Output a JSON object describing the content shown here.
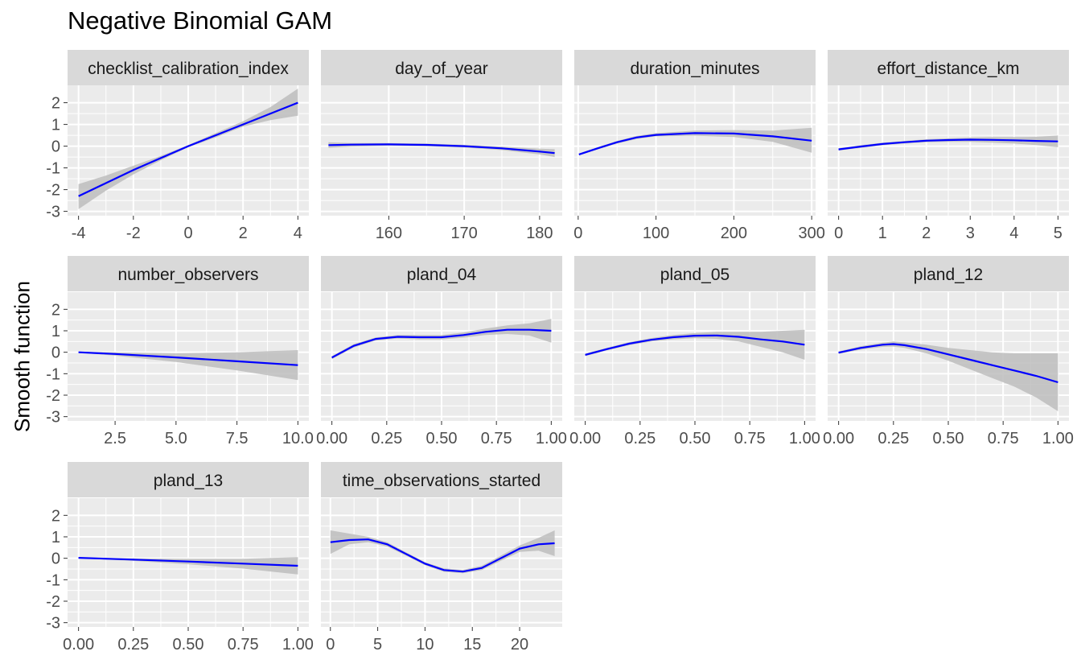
{
  "chart_data": {
    "type": "line",
    "title": "Negative Binomial GAM",
    "ylabel": "Smooth function",
    "y_ticks": [
      "2",
      "1",
      "0",
      "-1",
      "-2",
      "-3"
    ],
    "ylim": [
      -3.2,
      2.8
    ],
    "grid": true,
    "line_color": "#0000ff",
    "band_color": "#bdbdbd",
    "panel_bg": "#ebebeb",
    "strip_bg": "#d9d9d9",
    "panels": [
      {
        "title": "checklist_calibration_index",
        "xlim": [
          -4.4,
          4.4
        ],
        "x_ticks": [
          {
            "v": -4,
            "label": "-4"
          },
          {
            "v": -2,
            "label": "-2"
          },
          {
            "v": 0,
            "label": "0"
          },
          {
            "v": 2,
            "label": "2"
          },
          {
            "v": 4,
            "label": "4"
          }
        ],
        "series": [
          {
            "x": [
              -4,
              -3,
              -2,
              -1,
              0,
              1,
              2,
              3,
              4
            ],
            "y": [
              -2.3,
              -1.7,
              -1.1,
              -0.55,
              0,
              0.5,
              1.0,
              1.5,
              2.0
            ],
            "lower": [
              -2.9,
              -2.05,
              -1.3,
              -0.65,
              -0.05,
              0.4,
              0.9,
              1.2,
              1.4
            ],
            "upper": [
              -1.75,
              -1.35,
              -0.9,
              -0.45,
              0.05,
              0.6,
              1.15,
              1.8,
              2.65
            ]
          }
        ]
      },
      {
        "title": "day_of_year",
        "xlim": [
          151,
          183
        ],
        "x_ticks": [
          {
            "v": 160,
            "label": "160"
          },
          {
            "v": 170,
            "label": "170"
          },
          {
            "v": 180,
            "label": "180"
          }
        ],
        "series": [
          {
            "x": [
              152,
              155,
              160,
              165,
              170,
              175,
              180,
              182
            ],
            "y": [
              0.05,
              0.07,
              0.08,
              0.06,
              0.0,
              -0.1,
              -0.25,
              -0.32
            ],
            "lower": [
              -0.08,
              -0.02,
              0.02,
              0.0,
              -0.06,
              -0.18,
              -0.38,
              -0.5
            ],
            "upper": [
              0.18,
              0.14,
              0.14,
              0.12,
              0.06,
              -0.02,
              -0.12,
              -0.14
            ]
          }
        ]
      },
      {
        "title": "duration_minutes",
        "xlim": [
          -5,
          305
        ],
        "x_ticks": [
          {
            "v": 0,
            "label": "0"
          },
          {
            "v": 100,
            "label": "100"
          },
          {
            "v": 200,
            "label": "200"
          },
          {
            "v": 300,
            "label": "300"
          }
        ],
        "series": [
          {
            "x": [
              1,
              25,
              50,
              75,
              100,
              150,
              200,
              250,
              300
            ],
            "y": [
              -0.38,
              -0.1,
              0.18,
              0.4,
              0.52,
              0.6,
              0.58,
              0.45,
              0.25
            ],
            "lower": [
              -0.42,
              -0.15,
              0.12,
              0.33,
              0.45,
              0.48,
              0.42,
              0.2,
              -0.3
            ],
            "upper": [
              -0.34,
              -0.05,
              0.24,
              0.47,
              0.6,
              0.72,
              0.74,
              0.72,
              0.85
            ]
          }
        ]
      },
      {
        "title": "effort_distance_km",
        "xlim": [
          -0.25,
          5.25
        ],
        "x_ticks": [
          {
            "v": 0,
            "label": "0"
          },
          {
            "v": 1,
            "label": "1"
          },
          {
            "v": 2,
            "label": "2"
          },
          {
            "v": 3,
            "label": "3"
          },
          {
            "v": 4,
            "label": "4"
          },
          {
            "v": 5,
            "label": "5"
          }
        ],
        "series": [
          {
            "x": [
              0,
              0.5,
              1,
              1.5,
              2,
              2.5,
              3,
              3.5,
              4,
              4.5,
              5
            ],
            "y": [
              -0.15,
              -0.02,
              0.1,
              0.18,
              0.25,
              0.28,
              0.3,
              0.29,
              0.27,
              0.24,
              0.22
            ],
            "lower": [
              -0.2,
              -0.08,
              0.04,
              0.12,
              0.18,
              0.2,
              0.2,
              0.16,
              0.12,
              0.05,
              -0.05
            ],
            "upper": [
              -0.1,
              0.04,
              0.16,
              0.24,
              0.32,
              0.36,
              0.4,
              0.42,
              0.42,
              0.43,
              0.49
            ]
          }
        ]
      },
      {
        "title": "number_observers",
        "xlim": [
          0.55,
          10.45
        ],
        "x_ticks": [
          {
            "v": 2.5,
            "label": "2.5"
          },
          {
            "v": 5.0,
            "label": "5.0"
          },
          {
            "v": 7.5,
            "label": "7.5"
          },
          {
            "v": 10.0,
            "label": "10.0"
          }
        ],
        "series": [
          {
            "x": [
              1,
              2.5,
              5,
              7.5,
              10
            ],
            "y": [
              0.0,
              -0.08,
              -0.24,
              -0.42,
              -0.6
            ],
            "lower": [
              -0.02,
              -0.16,
              -0.45,
              -0.85,
              -1.3
            ],
            "upper": [
              0.02,
              0.0,
              -0.05,
              0.0,
              0.1
            ]
          }
        ]
      },
      {
        "title": "pland_04",
        "xlim": [
          -0.05,
          1.05
        ],
        "x_ticks": [
          {
            "v": 0,
            "label": "0.00"
          },
          {
            "v": 0.25,
            "label": "0.25"
          },
          {
            "v": 0.5,
            "label": "0.50"
          },
          {
            "v": 0.75,
            "label": "0.75"
          },
          {
            "v": 1.0,
            "label": "1.00"
          }
        ],
        "series": [
          {
            "x": [
              0,
              0.1,
              0.2,
              0.3,
              0.4,
              0.5,
              0.6,
              0.7,
              0.8,
              0.9,
              1.0
            ],
            "y": [
              -0.25,
              0.3,
              0.62,
              0.72,
              0.7,
              0.7,
              0.8,
              0.95,
              1.05,
              1.05,
              1.0
            ],
            "lower": [
              -0.32,
              0.22,
              0.55,
              0.64,
              0.6,
              0.6,
              0.68,
              0.8,
              0.85,
              0.78,
              0.45
            ],
            "upper": [
              -0.18,
              0.38,
              0.69,
              0.8,
              0.8,
              0.8,
              0.92,
              1.1,
              1.25,
              1.35,
              1.55
            ]
          }
        ]
      },
      {
        "title": "pland_05",
        "xlim": [
          -0.05,
          1.05
        ],
        "x_ticks": [
          {
            "v": 0,
            "label": "0.00"
          },
          {
            "v": 0.25,
            "label": "0.25"
          },
          {
            "v": 0.5,
            "label": "0.50"
          },
          {
            "v": 0.75,
            "label": "0.75"
          },
          {
            "v": 1.0,
            "label": "1.00"
          }
        ],
        "series": [
          {
            "x": [
              0,
              0.1,
              0.2,
              0.3,
              0.4,
              0.5,
              0.6,
              0.7,
              0.8,
              0.9,
              1.0
            ],
            "y": [
              -0.12,
              0.15,
              0.4,
              0.58,
              0.7,
              0.77,
              0.78,
              0.72,
              0.6,
              0.5,
              0.35
            ],
            "lower": [
              -0.18,
              0.09,
              0.33,
              0.5,
              0.6,
              0.65,
              0.62,
              0.5,
              0.25,
              0.0,
              -0.35
            ],
            "upper": [
              -0.06,
              0.21,
              0.47,
              0.66,
              0.8,
              0.9,
              0.95,
              0.95,
              0.95,
              1.0,
              1.05
            ]
          }
        ]
      },
      {
        "title": "pland_12",
        "xlim": [
          -0.05,
          1.05
        ],
        "x_ticks": [
          {
            "v": 0,
            "label": "0.00"
          },
          {
            "v": 0.25,
            "label": "0.25"
          },
          {
            "v": 0.5,
            "label": "0.50"
          },
          {
            "v": 0.75,
            "label": "0.75"
          },
          {
            "v": 1.0,
            "label": "1.00"
          }
        ],
        "series": [
          {
            "x": [
              0,
              0.1,
              0.2,
              0.25,
              0.3,
              0.4,
              0.5,
              0.6,
              0.7,
              0.8,
              0.9,
              1.0
            ],
            "y": [
              -0.02,
              0.2,
              0.35,
              0.38,
              0.33,
              0.15,
              -0.1,
              -0.35,
              -0.6,
              -0.85,
              -1.1,
              -1.4
            ],
            "lower": [
              -0.08,
              0.12,
              0.25,
              0.26,
              0.2,
              -0.05,
              -0.4,
              -0.8,
              -1.2,
              -1.6,
              -2.1,
              -2.75
            ],
            "upper": [
              0.04,
              0.28,
              0.45,
              0.5,
              0.46,
              0.35,
              0.2,
              0.1,
              0.0,
              -0.05,
              -0.05,
              -0.05
            ]
          }
        ]
      },
      {
        "title": "pland_13",
        "xlim": [
          -0.05,
          1.05
        ],
        "x_ticks": [
          {
            "v": 0,
            "label": "0.00"
          },
          {
            "v": 0.25,
            "label": "0.25"
          },
          {
            "v": 0.5,
            "label": "0.50"
          },
          {
            "v": 0.75,
            "label": "0.75"
          },
          {
            "v": 1.0,
            "label": "1.00"
          }
        ],
        "series": [
          {
            "x": [
              0,
              0.25,
              0.5,
              0.75,
              1.0
            ],
            "y": [
              0.02,
              -0.06,
              -0.15,
              -0.25,
              -0.35
            ],
            "lower": [
              0.0,
              -0.12,
              -0.28,
              -0.48,
              -0.75
            ],
            "upper": [
              0.04,
              0.0,
              -0.02,
              -0.02,
              0.05
            ]
          }
        ]
      },
      {
        "title": "time_observations_started",
        "xlim": [
          -1,
          24.5
        ],
        "x_ticks": [
          {
            "v": 0,
            "label": "0"
          },
          {
            "v": 5,
            "label": "5"
          },
          {
            "v": 10,
            "label": "10"
          },
          {
            "v": 15,
            "label": "15"
          },
          {
            "v": 20,
            "label": "20"
          }
        ],
        "series": [
          {
            "x": [
              0,
              2,
              4,
              6,
              8,
              10,
              12,
              14,
              16,
              18,
              20,
              22,
              23.7
            ],
            "y": [
              0.75,
              0.85,
              0.88,
              0.65,
              0.2,
              -0.25,
              -0.55,
              -0.62,
              -0.45,
              0.0,
              0.45,
              0.65,
              0.7
            ],
            "lower": [
              0.2,
              0.65,
              0.75,
              0.55,
              0.12,
              -0.32,
              -0.63,
              -0.7,
              -0.55,
              -0.12,
              0.3,
              0.35,
              0.1
            ],
            "upper": [
              1.3,
              1.15,
              1.0,
              0.75,
              0.28,
              -0.18,
              -0.47,
              -0.54,
              -0.35,
              0.12,
              0.6,
              0.95,
              1.3
            ]
          }
        ]
      }
    ]
  }
}
